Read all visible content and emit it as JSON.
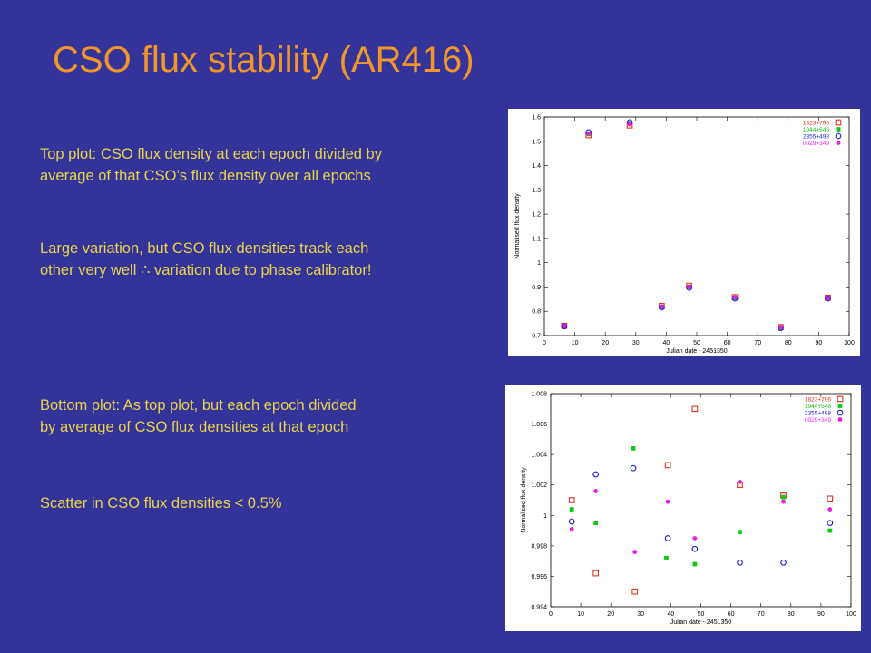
{
  "slide": {
    "title": "CSO flux stability (AR416)",
    "paragraphs": [
      [
        "Top plot: CSO flux density at each epoch divided by",
        "average of that CSO’s flux density over all epochs"
      ],
      [
        "Large variation, but CSO flux densities track each",
        "other very well ∴ variation due to phase calibrator!"
      ],
      [
        "Bottom plot: As top plot, but each epoch divided",
        "by average of CSO flux densities at that epoch"
      ],
      [
        "Scatter in CSO flux densities < 0.5%"
      ]
    ],
    "colors": {
      "background": "#343399",
      "title": "#f0962b",
      "text": "#e8d54a"
    }
  },
  "chart_data": [
    {
      "type": "scatter",
      "xlabel": "Julian date - 2451350",
      "ylabel": "Normalised flux density",
      "xlim": [
        0,
        100
      ],
      "ylim": [
        0.7,
        1.6
      ],
      "xticks": [
        "0",
        "10",
        "20",
        "30",
        "40",
        "50",
        "60",
        "70",
        "80",
        "90",
        "100"
      ],
      "yticks": [
        "0.7",
        "0.8",
        "0.9",
        "1",
        "1.1",
        "1.2",
        "1.3",
        "1.4",
        "1.5",
        "1.6"
      ],
      "legend_position": "top-right",
      "series": [
        {
          "name": "1823+796",
          "color": "#e8311f",
          "marker": "open-square",
          "x": [
            6.5,
            14.5,
            28,
            38.5,
            47.5,
            62.5,
            77.5,
            93
          ],
          "y": [
            0.74,
            1.525,
            1.565,
            0.822,
            0.905,
            0.858,
            0.735,
            0.856
          ]
        },
        {
          "name": "1944+548",
          "color": "#16c816",
          "marker": "filled-square",
          "x": [
            6.5,
            14.5,
            28,
            38.5,
            47.5,
            62.5,
            77.5,
            93
          ],
          "y": [
            0.738,
            1.53,
            1.575,
            0.818,
            0.9,
            0.855,
            0.732,
            0.852
          ]
        },
        {
          "name": "2355+498",
          "color": "#1a1ad8",
          "marker": "open-circle",
          "x": [
            6.5,
            14.5,
            28,
            38.5,
            47.5,
            62.5,
            77.5,
            93
          ],
          "y": [
            0.738,
            1.537,
            1.578,
            0.816,
            0.897,
            0.853,
            0.731,
            0.853
          ]
        },
        {
          "name": "0029+349",
          "color": "#e61fe6",
          "marker": "filled-circle",
          "x": [
            6.5,
            14.5,
            28,
            38.5,
            47.5,
            62.5,
            77.5,
            93
          ],
          "y": [
            0.739,
            1.532,
            1.57,
            0.819,
            0.899,
            0.857,
            0.734,
            0.854
          ]
        }
      ]
    },
    {
      "type": "scatter",
      "xlabel": "Julian date - 2451350",
      "ylabel": "Normalised flux density",
      "xlim": [
        0,
        100
      ],
      "ylim": [
        0.994,
        1.008
      ],
      "xticks": [
        "0",
        "10",
        "20",
        "30",
        "40",
        "50",
        "60",
        "70",
        "80",
        "90",
        "100"
      ],
      "yticks": [
        "0.994",
        "0.996",
        "0.998",
        "1",
        "1.002",
        "1.004",
        "1.006",
        "1.008"
      ],
      "legend_position": "top-right",
      "series": [
        {
          "name": "1823+796",
          "color": "#e8311f",
          "marker": "open-square",
          "x": [
            7,
            15,
            28,
            39,
            48,
            63,
            77.5,
            93
          ],
          "y": [
            1.001,
            0.9962,
            0.995,
            1.0033,
            1.007,
            1.002,
            1.0013,
            1.0011
          ]
        },
        {
          "name": "1944+548",
          "color": "#16c816",
          "marker": "filled-square",
          "x": [
            7,
            15,
            27.5,
            38.5,
            48,
            63,
            77.5,
            93
          ],
          "y": [
            1.0004,
            0.9995,
            1.0044,
            0.9972,
            0.9968,
            0.9989,
            1.0012,
            0.999
          ]
        },
        {
          "name": "2355+498",
          "color": "#1a1ad8",
          "marker": "open-circle",
          "x": [
            7,
            15,
            27.5,
            39,
            48,
            63,
            77.5,
            93
          ],
          "y": [
            0.9996,
            1.0027,
            1.0031,
            0.9985,
            0.9978,
            0.9969,
            0.9969,
            0.9995
          ]
        },
        {
          "name": "0029+349",
          "color": "#e61fe6",
          "marker": "filled-circle",
          "x": [
            7,
            15,
            28,
            39,
            48,
            63,
            77.5,
            93
          ],
          "y": [
            0.9991,
            1.0016,
            0.9976,
            1.0009,
            0.9985,
            1.0022,
            1.0009,
            1.0004
          ]
        }
      ]
    }
  ]
}
